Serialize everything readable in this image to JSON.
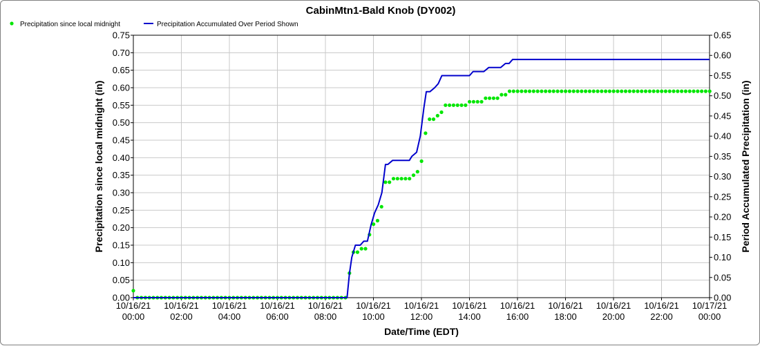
{
  "chart_data": {
    "type": "line",
    "title": "CabinMtn1-Bald Knob (DY002)",
    "xlabel": "Date/Time (EDT)",
    "ylabel": "Precipitation since local midnight (in)",
    "y2label": "Period Accumulated Precipitation (in)",
    "xlim_hours": [
      0,
      24
    ],
    "ylim": [
      0,
      0.75
    ],
    "y2lim": [
      0,
      0.65
    ],
    "grid": true,
    "legend_position": "top-left",
    "x_ticks": [
      {
        "hour": 0,
        "date": "10/16/21",
        "time": "00:00"
      },
      {
        "hour": 2,
        "date": "10/16/21",
        "time": "02:00"
      },
      {
        "hour": 4,
        "date": "10/16/21",
        "time": "04:00"
      },
      {
        "hour": 6,
        "date": "10/16/21",
        "time": "06:00"
      },
      {
        "hour": 8,
        "date": "10/16/21",
        "time": "08:00"
      },
      {
        "hour": 10,
        "date": "10/16/21",
        "time": "10:00"
      },
      {
        "hour": 12,
        "date": "10/16/21",
        "time": "12:00"
      },
      {
        "hour": 14,
        "date": "10/16/21",
        "time": "14:00"
      },
      {
        "hour": 16,
        "date": "10/16/21",
        "time": "16:00"
      },
      {
        "hour": 18,
        "date": "10/16/21",
        "time": "18:00"
      },
      {
        "hour": 20,
        "date": "10/16/21",
        "time": "20:00"
      },
      {
        "hour": 22,
        "date": "10/16/21",
        "time": "22:00"
      },
      {
        "hour": 24,
        "date": "10/17/21",
        "time": "00:00"
      }
    ],
    "y_ticks": [
      "0.00",
      "0.05",
      "0.10",
      "0.15",
      "0.20",
      "0.25",
      "0.30",
      "0.35",
      "0.40",
      "0.45",
      "0.50",
      "0.55",
      "0.60",
      "0.65",
      "0.70",
      "0.75"
    ],
    "y2_ticks": [
      "0.00",
      "0.05",
      "0.10",
      "0.15",
      "0.20",
      "0.25",
      "0.30",
      "0.35",
      "0.40",
      "0.45",
      "0.50",
      "0.55",
      "0.60",
      "0.65"
    ],
    "series": [
      {
        "name": "Precipitation since local midnight",
        "color": "#00e600",
        "style": "dots",
        "axis": "left",
        "step_hours": 0.1667,
        "start_hour": 0,
        "values": [
          0.02,
          0.0,
          0.0,
          0.0,
          0.0,
          0.0,
          0.0,
          0.0,
          0.0,
          0.0,
          0.0,
          0.0,
          0.0,
          0.0,
          0.0,
          0.0,
          0.0,
          0.0,
          0.0,
          0.0,
          0.0,
          0.0,
          0.0,
          0.0,
          0.0,
          0.0,
          0.0,
          0.0,
          0.0,
          0.0,
          0.0,
          0.0,
          0.0,
          0.0,
          0.0,
          0.0,
          0.0,
          0.0,
          0.0,
          0.0,
          0.0,
          0.0,
          0.0,
          0.0,
          0.0,
          0.0,
          0.0,
          0.0,
          0.0,
          0.0,
          0.0,
          0.0,
          0.0,
          0.0,
          0.07,
          0.13,
          0.13,
          0.14,
          0.14,
          0.18,
          0.21,
          0.22,
          0.26,
          0.33,
          0.33,
          0.34,
          0.34,
          0.34,
          0.34,
          0.34,
          0.35,
          0.36,
          0.39,
          0.47,
          0.51,
          0.51,
          0.52,
          0.53,
          0.55,
          0.55,
          0.55,
          0.55,
          0.55,
          0.55,
          0.56,
          0.56,
          0.56,
          0.56,
          0.57,
          0.57,
          0.57,
          0.57,
          0.58,
          0.58,
          0.59,
          0.59,
          0.59,
          0.59,
          0.59,
          0.59,
          0.59,
          0.59,
          0.59,
          0.59,
          0.59,
          0.59,
          0.59,
          0.59,
          0.59,
          0.59,
          0.59,
          0.59,
          0.59,
          0.59,
          0.59,
          0.59,
          0.59,
          0.59,
          0.59,
          0.59,
          0.59,
          0.59,
          0.59,
          0.59,
          0.59,
          0.59,
          0.59,
          0.59,
          0.59,
          0.59,
          0.59,
          0.59,
          0.59,
          0.59,
          0.59,
          0.59,
          0.59,
          0.59,
          0.59,
          0.59,
          0.59,
          0.59,
          0.59,
          0.59,
          0.59
        ]
      },
      {
        "name": "Precipitation Accumulated Over Period Shown",
        "color": "#0000cc",
        "style": "line",
        "axis": "right",
        "x": [
          0,
          8.9,
          9.0,
          9.1,
          9.25,
          9.45,
          9.6,
          9.75,
          9.9,
          10.05,
          10.2,
          10.35,
          10.5,
          10.6,
          10.8,
          10.95,
          11.15,
          11.3,
          11.5,
          11.6,
          11.8,
          11.95,
          12.1,
          12.2,
          12.35,
          12.55,
          12.7,
          12.85,
          13.1,
          13.4,
          14.0,
          14.15,
          14.6,
          14.8,
          15.3,
          15.5,
          15.65,
          15.8,
          24.0
        ],
        "values": [
          0.0,
          0.0,
          0.06,
          0.1,
          0.13,
          0.13,
          0.14,
          0.14,
          0.18,
          0.21,
          0.23,
          0.26,
          0.33,
          0.33,
          0.34,
          0.34,
          0.34,
          0.34,
          0.34,
          0.35,
          0.36,
          0.4,
          0.47,
          0.51,
          0.51,
          0.52,
          0.53,
          0.55,
          0.55,
          0.55,
          0.55,
          0.56,
          0.56,
          0.57,
          0.57,
          0.58,
          0.58,
          0.59,
          0.59
        ]
      }
    ]
  }
}
